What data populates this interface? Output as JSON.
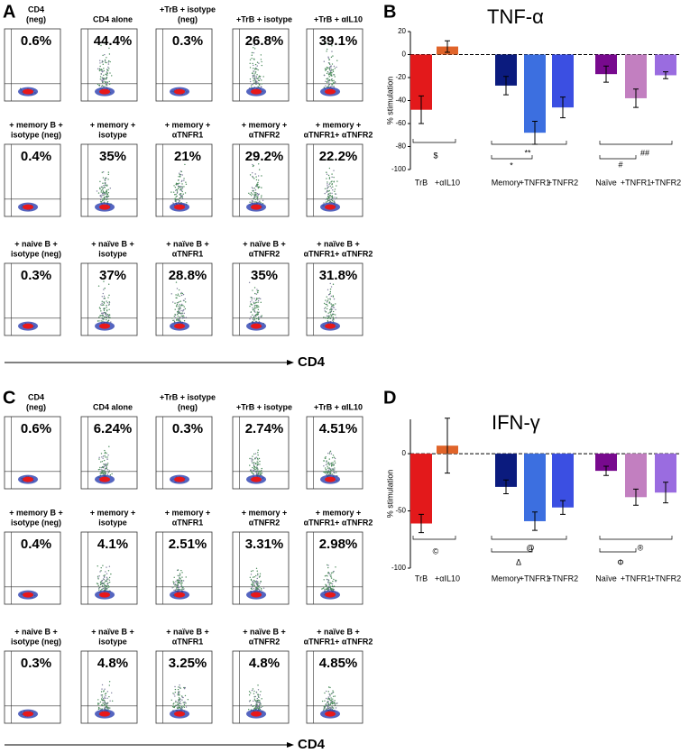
{
  "panels": [
    {
      "letter": "A",
      "axis_label": "CD4",
      "rows": [
        [
          {
            "title": [
              "CD4",
              "(neg)"
            ],
            "percent": "0.6%"
          },
          {
            "title": [
              "CD4 alone"
            ],
            "percent": "44.4%"
          },
          {
            "title": [
              "+TrB + isotype",
              "(neg)"
            ],
            "percent": "0.3%"
          },
          {
            "title": [
              "+TrB + isotype"
            ],
            "percent": "26.8%"
          },
          {
            "title": [
              "+TrB + αIL10"
            ],
            "percent": "39.1%"
          }
        ],
        [
          {
            "title": [
              "+ memory B +",
              "isotype (neg)"
            ],
            "percent": "0.4%"
          },
          {
            "title": [
              "+ memory +",
              "isotype"
            ],
            "percent": "35%"
          },
          {
            "title": [
              "+ memory +",
              "αTNFR1"
            ],
            "percent": "21%"
          },
          {
            "title": [
              "+ memory +",
              "αTNFR2"
            ],
            "percent": "29.2%"
          },
          {
            "title": [
              "+ memory +",
              "αTNFR1+ αTNFR2"
            ],
            "percent": "22.2%"
          }
        ],
        [
          {
            "title": [
              "+ naive B +",
              "isotype (neg)"
            ],
            "percent": "0.3%"
          },
          {
            "title": [
              "+ naïve B +",
              "isotype"
            ],
            "percent": "37%"
          },
          {
            "title": [
              "+ naïve B +",
              "αTNFR1"
            ],
            "percent": "28.8%"
          },
          {
            "title": [
              "+ naïve B +",
              "αTNFR2"
            ],
            "percent": "35%"
          },
          {
            "title": [
              "+ naïve B +",
              "αTNFR1+ αTNFR2"
            ],
            "percent": "31.8%"
          }
        ]
      ]
    },
    {
      "letter": "C",
      "axis_label": "CD4",
      "rows": [
        [
          {
            "title": [
              "CD4",
              "(neg)"
            ],
            "percent": "0.6%"
          },
          {
            "title": [
              "CD4 alone"
            ],
            "percent": "6.24%"
          },
          {
            "title": [
              "+TrB + isotype",
              "(neg)"
            ],
            "percent": "0.3%"
          },
          {
            "title": [
              "+TrB + isotype"
            ],
            "percent": "2.74%"
          },
          {
            "title": [
              "+TrB + αIL10"
            ],
            "percent": "4.51%"
          }
        ],
        [
          {
            "title": [
              "+ memory B +",
              "isotype (neg)"
            ],
            "percent": "0.4%"
          },
          {
            "title": [
              "+ memory +",
              "isotype"
            ],
            "percent": "4.1%"
          },
          {
            "title": [
              "+ memory +",
              "αTNFR1"
            ],
            "percent": "2.51%"
          },
          {
            "title": [
              "+ memory +",
              "αTNFR2"
            ],
            "percent": "3.31%"
          },
          {
            "title": [
              "+ memory +",
              "αTNFR1+ αTNFR2"
            ],
            "percent": "2.98%"
          }
        ],
        [
          {
            "title": [
              "+ naive B +",
              "isotype (neg)"
            ],
            "percent": "0.3%"
          },
          {
            "title": [
              "+ naïve B +",
              "isotype"
            ],
            "percent": "4.8%"
          },
          {
            "title": [
              "+ naïve B +",
              "αTNFR1"
            ],
            "percent": "3.25%"
          },
          {
            "title": [
              "+ naïve B +",
              "αTNFR2"
            ],
            "percent": "4.8%"
          },
          {
            "title": [
              "+ naïve B +",
              "αTNFR1+ αTNFR2"
            ],
            "percent": "4.85%"
          }
        ]
      ]
    }
  ],
  "chart_data": [
    {
      "type": "bar",
      "letter": "B",
      "title": "TNF-α",
      "y_label": "% stimulation",
      "categories": [
        "TrB",
        "+αIL10",
        "Memory",
        "+TNFR1",
        "+TNFR2",
        "Naïve",
        "+TNFR1",
        "+TNFR2"
      ],
      "values": [
        -48,
        7,
        -27,
        -68,
        -46,
        -17,
        -38,
        -18
      ],
      "errors": [
        12,
        5,
        8,
        10,
        9,
        7,
        8,
        3
      ],
      "colors": [
        "#e3191b",
        "#e0642a",
        "#0b1b7e",
        "#3c6fe0",
        "#3b4fe2",
        "#780a8e",
        "#c27fc0",
        "#9a6ce0"
      ],
      "ylim": [
        -100,
        20
      ],
      "yticks": [
        20,
        0,
        -20,
        -40,
        -60,
        -80,
        -100
      ],
      "annotations": [
        "$",
        "**",
        "*",
        "##",
        "#"
      ]
    },
    {
      "type": "bar",
      "letter": "D",
      "title": "IFN-γ",
      "y_label": "% stimulation",
      "categories": [
        "TrB",
        "+αIL10",
        "Memory",
        "+TNFR1",
        "+TNFR2",
        "Naïve",
        "+TNFR1",
        "+TNFR2"
      ],
      "values": [
        -61,
        7,
        -29,
        -59,
        -47,
        -15,
        -38,
        -34
      ],
      "errors": [
        8,
        24,
        6,
        8,
        6,
        4,
        7,
        9
      ],
      "colors": [
        "#e3191b",
        "#e0642a",
        "#0b1b7e",
        "#3c6fe0",
        "#3b4fe2",
        "#780a8e",
        "#c27fc0",
        "#9a6ce0"
      ],
      "ylim": [
        -100,
        30
      ],
      "yticks": [
        0,
        -50,
        -100
      ],
      "annotations": [
        "©",
        "@",
        "Δ",
        "®",
        "Φ"
      ]
    }
  ]
}
